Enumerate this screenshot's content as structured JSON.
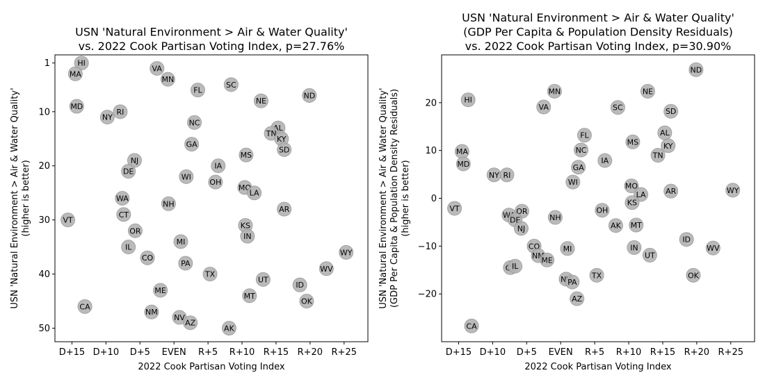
{
  "colors": {
    "marker_fill": "#b3b3b3",
    "marker_edge": "#9a9a9a",
    "axis": "#000000"
  },
  "chart_data": [
    {
      "type": "scatter",
      "title_lines": [
        "USN 'Natural Environment > Air & Water Quality'",
        "vs. 2022 Cook Partisan Voting Index, p=27.76%"
      ],
      "xlabel": "2022 Cook Partisan Voting Index",
      "ylabel_lines": [
        "USN 'Natural Environment > Air & Water Quality'",
        "(higher is better)"
      ],
      "xlim": [
        -17.5,
        28.5
      ],
      "ylim": [
        52.5,
        -0.5
      ],
      "y_inverted": true,
      "xticks": [
        {
          "value": -15,
          "label": "D+15"
        },
        {
          "value": -10,
          "label": "D+10"
        },
        {
          "value": -5,
          "label": "D+5"
        },
        {
          "value": 0,
          "label": "EVEN"
        },
        {
          "value": 5,
          "label": "R+5"
        },
        {
          "value": 10,
          "label": "R+10"
        },
        {
          "value": 15,
          "label": "R+15"
        },
        {
          "value": 20,
          "label": "R+20"
        },
        {
          "value": 25,
          "label": "R+25"
        }
      ],
      "yticks": [
        {
          "value": 1,
          "label": "1"
        },
        {
          "value": 10,
          "label": "10"
        },
        {
          "value": 20,
          "label": "20"
        },
        {
          "value": 30,
          "label": "30"
        },
        {
          "value": 40,
          "label": "40"
        },
        {
          "value": 50,
          "label": "50"
        }
      ],
      "points": [
        {
          "label": "HI",
          "x": -13.6,
          "y": 1
        },
        {
          "label": "VA",
          "x": -2.5,
          "y": 2
        },
        {
          "label": "MA",
          "x": -14.5,
          "y": 3
        },
        {
          "label": "MN",
          "x": -0.9,
          "y": 4
        },
        {
          "label": "SC",
          "x": 8.4,
          "y": 5
        },
        {
          "label": "FL",
          "x": 3.5,
          "y": 6
        },
        {
          "label": "ND",
          "x": 19.9,
          "y": 7
        },
        {
          "label": "NE",
          "x": 12.8,
          "y": 8
        },
        {
          "label": "MD",
          "x": -14.3,
          "y": 9
        },
        {
          "label": "RI",
          "x": -7.9,
          "y": 10
        },
        {
          "label": "NY",
          "x": -9.8,
          "y": 11
        },
        {
          "label": "NC",
          "x": 3.0,
          "y": 12
        },
        {
          "label": "AL",
          "x": 15.3,
          "y": 13
        },
        {
          "label": "TN",
          "x": 14.3,
          "y": 14
        },
        {
          "label": "KY",
          "x": 15.8,
          "y": 15
        },
        {
          "label": "GA",
          "x": 2.6,
          "y": 16
        },
        {
          "label": "SD",
          "x": 16.2,
          "y": 17
        },
        {
          "label": "MS",
          "x": 10.6,
          "y": 18
        },
        {
          "label": "NJ",
          "x": -5.8,
          "y": 19
        },
        {
          "label": "IA",
          "x": 6.5,
          "y": 20
        },
        {
          "label": "DE",
          "x": -6.7,
          "y": 21
        },
        {
          "label": "WI",
          "x": 1.8,
          "y": 22
        },
        {
          "label": "OH",
          "x": 6.1,
          "y": 23
        },
        {
          "label": "MO",
          "x": 10.4,
          "y": 24
        },
        {
          "label": "LA",
          "x": 11.8,
          "y": 25
        },
        {
          "label": "WA",
          "x": -7.6,
          "y": 26
        },
        {
          "label": "NH",
          "x": -0.8,
          "y": 27
        },
        {
          "label": "AR",
          "x": 16.2,
          "y": 28
        },
        {
          "label": "CT",
          "x": -7.4,
          "y": 29
        },
        {
          "label": "VT",
          "x": -15.6,
          "y": 30
        },
        {
          "label": "KS",
          "x": 10.5,
          "y": 31
        },
        {
          "label": "OR",
          "x": -5.7,
          "y": 32
        },
        {
          "label": "IN",
          "x": 10.8,
          "y": 33
        },
        {
          "label": "MI",
          "x": 1.0,
          "y": 34
        },
        {
          "label": "IL",
          "x": -6.7,
          "y": 35
        },
        {
          "label": "WY",
          "x": 25.3,
          "y": 36
        },
        {
          "label": "CO",
          "x": -3.9,
          "y": 37
        },
        {
          "label": "PA",
          "x": 1.7,
          "y": 38
        },
        {
          "label": "WV",
          "x": 22.4,
          "y": 39
        },
        {
          "label": "TX",
          "x": 5.3,
          "y": 40
        },
        {
          "label": "UT",
          "x": 13.1,
          "y": 41
        },
        {
          "label": "ID",
          "x": 18.5,
          "y": 42
        },
        {
          "label": "ME",
          "x": -2.0,
          "y": 43
        },
        {
          "label": "MT",
          "x": 11.1,
          "y": 44
        },
        {
          "label": "OK",
          "x": 19.5,
          "y": 45
        },
        {
          "label": "CA",
          "x": -13.1,
          "y": 46
        },
        {
          "label": "NM",
          "x": -3.3,
          "y": 47
        },
        {
          "label": "NV",
          "x": 0.8,
          "y": 48
        },
        {
          "label": "AZ",
          "x": 2.4,
          "y": 49
        },
        {
          "label": "AK",
          "x": 8.1,
          "y": 50
        }
      ]
    },
    {
      "type": "scatter",
      "title_lines": [
        "USN 'Natural Environment > Air & Water Quality'",
        "(GDP Per Capita & Population Density Residuals)",
        "vs. 2022 Cook Partisan Voting Index, p=30.90%"
      ],
      "xlabel": "2022 Cook Partisan Voting Index",
      "ylabel_lines": [
        "USN 'Natural Environment > Air & Water Quality'",
        "(GDP Per Capita & Population Density Residuals)",
        "(higher is better)"
      ],
      "xlim": [
        -17.5,
        28.5
      ],
      "ylim": [
        -30,
        30
      ],
      "y_inverted": false,
      "xticks": [
        {
          "value": -15,
          "label": "D+15"
        },
        {
          "value": -10,
          "label": "D+10"
        },
        {
          "value": -5,
          "label": "D+5"
        },
        {
          "value": 0,
          "label": "EVEN"
        },
        {
          "value": 5,
          "label": "R+5"
        },
        {
          "value": 10,
          "label": "R+10"
        },
        {
          "value": 15,
          "label": "R+15"
        },
        {
          "value": 20,
          "label": "R+20"
        },
        {
          "value": 25,
          "label": "R+25"
        }
      ],
      "yticks": [
        {
          "value": 20,
          "label": "20"
        },
        {
          "value": 10,
          "label": "10"
        },
        {
          "value": 0,
          "label": "0"
        },
        {
          "value": -10,
          "label": "−10"
        },
        {
          "value": -20,
          "label": "−20"
        }
      ],
      "points": [
        {
          "label": "ND",
          "x": 19.9,
          "y": 26.9
        },
        {
          "label": "MN",
          "x": -0.9,
          "y": 22.4
        },
        {
          "label": "NE",
          "x": 12.8,
          "y": 22.4
        },
        {
          "label": "HI",
          "x": -13.6,
          "y": 20.6
        },
        {
          "label": "VA",
          "x": -2.5,
          "y": 19.1
        },
        {
          "label": "SC",
          "x": 8.4,
          "y": 19.0
        },
        {
          "label": "SD",
          "x": 16.2,
          "y": 18.2
        },
        {
          "label": "AL",
          "x": 15.3,
          "y": 13.7
        },
        {
          "label": "FL",
          "x": 3.5,
          "y": 13.2
        },
        {
          "label": "MS",
          "x": 10.6,
          "y": 11.8
        },
        {
          "label": "KY",
          "x": 15.8,
          "y": 11.0
        },
        {
          "label": "NC",
          "x": 3.0,
          "y": 10.1
        },
        {
          "label": "MA",
          "x": -14.5,
          "y": 9.8
        },
        {
          "label": "TN",
          "x": 14.3,
          "y": 9.0
        },
        {
          "label": "IA",
          "x": 6.5,
          "y": 7.9
        },
        {
          "label": "MD",
          "x": -14.3,
          "y": 7.2
        },
        {
          "label": "GA",
          "x": 2.6,
          "y": 6.5
        },
        {
          "label": "NY",
          "x": -9.8,
          "y": 4.9
        },
        {
          "label": "RI",
          "x": -7.9,
          "y": 4.9
        },
        {
          "label": "WI",
          "x": 1.8,
          "y": 3.4
        },
        {
          "label": "MO",
          "x": 10.4,
          "y": 2.6
        },
        {
          "label": "WY",
          "x": 25.3,
          "y": 1.7
        },
        {
          "label": "AR",
          "x": 16.2,
          "y": 1.5
        },
        {
          "label": "LA",
          "x": 11.8,
          "y": 0.8
        },
        {
          "label": "KS",
          "x": 10.5,
          "y": -0.9
        },
        {
          "label": "VT",
          "x": -15.6,
          "y": -2.1
        },
        {
          "label": "OH",
          "x": 6.1,
          "y": -2.5
        },
        {
          "label": "OR",
          "x": -5.7,
          "y": -2.7
        },
        {
          "label": "WA",
          "x": -7.6,
          "y": -3.5
        },
        {
          "label": "NH",
          "x": -0.8,
          "y": -4.0
        },
        {
          "label": "DE",
          "x": -6.7,
          "y": -4.5
        },
        {
          "label": "AK",
          "x": 8.1,
          "y": -5.7
        },
        {
          "label": "MT",
          "x": 11.1,
          "y": -5.6
        },
        {
          "label": "NJ",
          "x": -5.8,
          "y": -6.3
        },
        {
          "label": "ID",
          "x": 18.5,
          "y": -8.6
        },
        {
          "label": "CO",
          "x": -3.9,
          "y": -10.0
        },
        {
          "label": "IN",
          "x": 10.8,
          "y": -10.3
        },
        {
          "label": "MI",
          "x": 1.0,
          "y": -10.5
        },
        {
          "label": "WV",
          "x": 22.4,
          "y": -10.4
        },
        {
          "label": "UT",
          "x": 13.1,
          "y": -11.9
        },
        {
          "label": "NM",
          "x": -3.3,
          "y": -12.0
        },
        {
          "label": "ME",
          "x": -2.0,
          "y": -12.9
        },
        {
          "label": "CT",
          "x": -7.4,
          "y": -14.5
        },
        {
          "label": "IL",
          "x": -6.7,
          "y": -14.2
        },
        {
          "label": "TX",
          "x": 5.3,
          "y": -16.1
        },
        {
          "label": "OK",
          "x": 19.5,
          "y": -16.1
        },
        {
          "label": "NV",
          "x": 0.8,
          "y": -16.9
        },
        {
          "label": "PA",
          "x": 1.7,
          "y": -17.5
        },
        {
          "label": "AZ",
          "x": 2.4,
          "y": -21.0
        },
        {
          "label": "CA",
          "x": -13.1,
          "y": -26.7
        }
      ]
    }
  ]
}
